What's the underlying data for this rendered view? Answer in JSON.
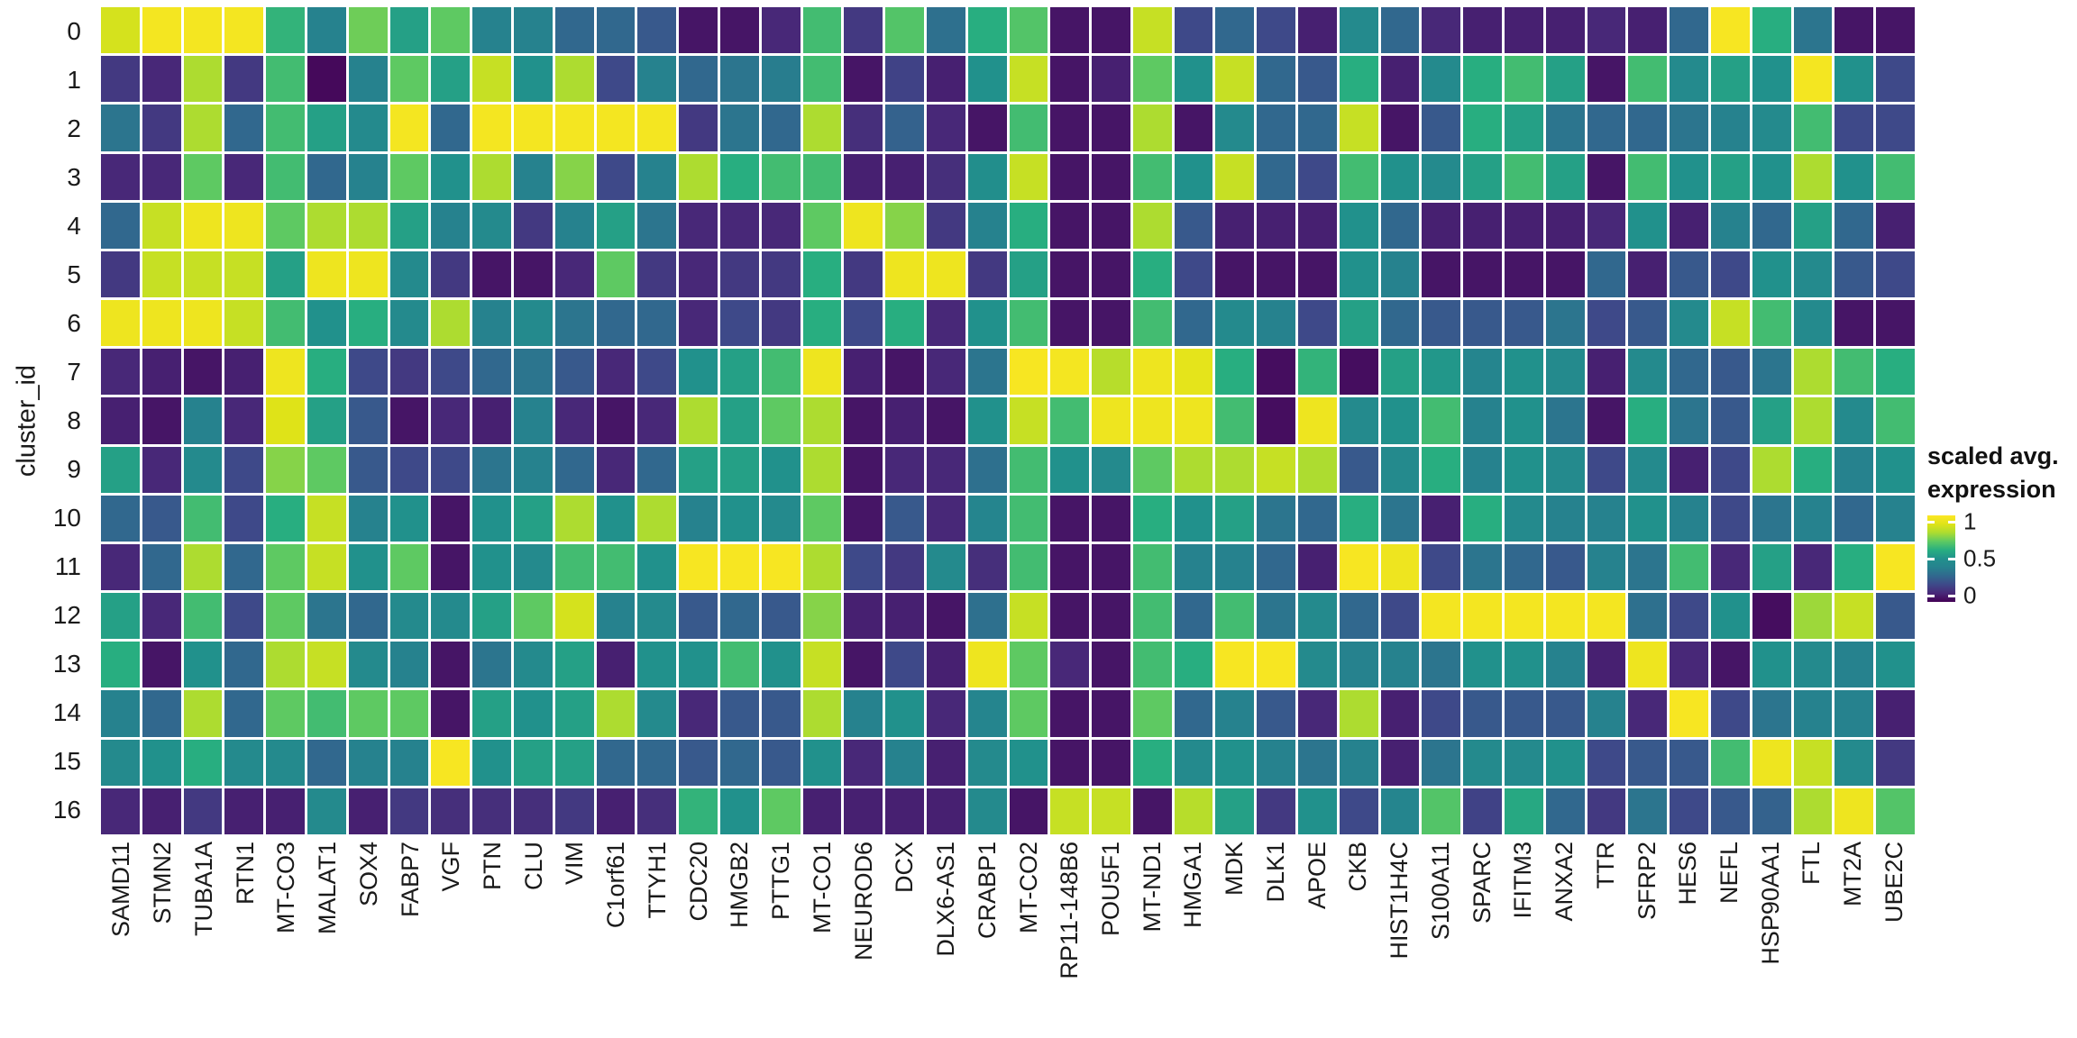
{
  "figure": {
    "y_axis_title": "cluster_id",
    "legend": {
      "title_line1": "scaled avg.",
      "title_line2": "expression",
      "tick_labels": [
        "1",
        "0.5",
        "0"
      ],
      "tick_positions_pct": [
        7,
        50,
        93
      ]
    }
  },
  "chart_data": {
    "type": "heatmap",
    "title": "",
    "xlabel": "",
    "ylabel": "cluster_id",
    "value_name": "scaled avg. expression",
    "value_range": [
      0,
      1
    ],
    "grid": "white gaps between cells",
    "legend_position": "right",
    "colormap": "viridis",
    "colormap_anchors": [
      "#440154",
      "#482878",
      "#3e4989",
      "#31688e",
      "#26828e",
      "#21918c",
      "#28ae80",
      "#5ec962",
      "#addc30",
      "#dfe318",
      "#fde725"
    ],
    "x_categories": [
      "SAMD11",
      "STMN2",
      "TUBA1A",
      "RTN1",
      "MT-CO3",
      "MALAT1",
      "SOX4",
      "FABP7",
      "VGF",
      "PTN",
      "CLU",
      "VIM",
      "C1orf61",
      "TTYH1",
      "CDC20",
      "HMGB2",
      "PTTG1",
      "MT-CO1",
      "NEUROD6",
      "DCX",
      "DLX6-AS1",
      "CRABP1",
      "MT-CO2",
      "RP11-148B6",
      "POU5F1",
      "MT-ND1",
      "HMGA1",
      "MDK",
      "DLK1",
      "APOE",
      "CKB",
      "HIST1H4C",
      "S100A11",
      "SPARC",
      "IFITM3",
      "ANXA2",
      "TTR",
      "SFRP2",
      "HES6",
      "NEFL",
      "HSP90AA1",
      "FTL",
      "MT2A",
      "UBE2C"
    ],
    "y_categories": [
      "0",
      "1",
      "2",
      "3",
      "4",
      "5",
      "6",
      "7",
      "8",
      "9",
      "10",
      "11",
      "12",
      "13",
      "14",
      "15",
      "16"
    ],
    "values": [
      [
        0.88,
        0.97,
        0.97,
        0.97,
        0.62,
        0.4,
        0.72,
        0.55,
        0.7,
        0.4,
        0.4,
        0.3,
        0.3,
        0.25,
        0.05,
        0.05,
        0.1,
        0.65,
        0.15,
        0.68,
        0.33,
        0.6,
        0.68,
        0.05,
        0.05,
        0.85,
        0.2,
        0.3,
        0.2,
        0.08,
        0.45,
        0.3,
        0.1,
        0.08,
        0.08,
        0.08,
        0.1,
        0.08,
        0.3,
        0.98,
        0.6,
        0.35,
        0.05,
        0.05
      ],
      [
        0.15,
        0.1,
        0.8,
        0.15,
        0.65,
        0.02,
        0.4,
        0.7,
        0.55,
        0.85,
        0.5,
        0.8,
        0.2,
        0.4,
        0.3,
        0.35,
        0.38,
        0.65,
        0.05,
        0.18,
        0.08,
        0.5,
        0.85,
        0.05,
        0.08,
        0.7,
        0.5,
        0.85,
        0.3,
        0.25,
        0.6,
        0.08,
        0.45,
        0.6,
        0.65,
        0.55,
        0.05,
        0.65,
        0.45,
        0.55,
        0.5,
        0.97,
        0.5,
        0.2
      ],
      [
        0.35,
        0.15,
        0.8,
        0.3,
        0.65,
        0.55,
        0.45,
        0.97,
        0.3,
        0.97,
        0.97,
        0.97,
        0.97,
        0.97,
        0.15,
        0.35,
        0.3,
        0.8,
        0.12,
        0.28,
        0.1,
        0.05,
        0.65,
        0.05,
        0.05,
        0.8,
        0.05,
        0.45,
        0.3,
        0.3,
        0.85,
        0.05,
        0.25,
        0.6,
        0.55,
        0.35,
        0.3,
        0.3,
        0.35,
        0.4,
        0.45,
        0.65,
        0.2,
        0.2
      ],
      [
        0.1,
        0.1,
        0.7,
        0.1,
        0.65,
        0.3,
        0.4,
        0.7,
        0.5,
        0.8,
        0.4,
        0.75,
        0.2,
        0.4,
        0.8,
        0.6,
        0.65,
        0.65,
        0.08,
        0.08,
        0.12,
        0.48,
        0.85,
        0.05,
        0.05,
        0.65,
        0.5,
        0.85,
        0.3,
        0.2,
        0.65,
        0.5,
        0.45,
        0.55,
        0.65,
        0.55,
        0.05,
        0.65,
        0.5,
        0.55,
        0.5,
        0.8,
        0.5,
        0.65
      ],
      [
        0.3,
        0.85,
        0.95,
        0.95,
        0.7,
        0.8,
        0.8,
        0.55,
        0.4,
        0.45,
        0.15,
        0.4,
        0.55,
        0.35,
        0.1,
        0.1,
        0.1,
        0.7,
        0.95,
        0.75,
        0.15,
        0.4,
        0.6,
        0.05,
        0.05,
        0.8,
        0.25,
        0.08,
        0.08,
        0.08,
        0.5,
        0.3,
        0.08,
        0.08,
        0.08,
        0.08,
        0.1,
        0.5,
        0.08,
        0.4,
        0.3,
        0.55,
        0.3,
        0.08
      ],
      [
        0.15,
        0.85,
        0.85,
        0.85,
        0.55,
        0.95,
        0.95,
        0.45,
        0.15,
        0.05,
        0.05,
        0.1,
        0.7,
        0.15,
        0.1,
        0.15,
        0.15,
        0.6,
        0.15,
        0.95,
        0.95,
        0.15,
        0.55,
        0.05,
        0.05,
        0.6,
        0.2,
        0.05,
        0.05,
        0.05,
        0.5,
        0.4,
        0.05,
        0.05,
        0.05,
        0.05,
        0.3,
        0.08,
        0.25,
        0.2,
        0.5,
        0.45,
        0.25,
        0.2
      ],
      [
        0.95,
        0.95,
        0.95,
        0.85,
        0.65,
        0.5,
        0.6,
        0.45,
        0.8,
        0.4,
        0.45,
        0.35,
        0.3,
        0.3,
        0.1,
        0.2,
        0.15,
        0.6,
        0.2,
        0.6,
        0.1,
        0.5,
        0.65,
        0.05,
        0.05,
        0.65,
        0.3,
        0.45,
        0.4,
        0.2,
        0.55,
        0.3,
        0.25,
        0.25,
        0.25,
        0.35,
        0.2,
        0.25,
        0.45,
        0.85,
        0.65,
        0.45,
        0.05,
        0.05
      ],
      [
        0.1,
        0.08,
        0.05,
        0.08,
        0.95,
        0.6,
        0.2,
        0.15,
        0.2,
        0.3,
        0.35,
        0.25,
        0.1,
        0.2,
        0.5,
        0.55,
        0.65,
        0.95,
        0.08,
        0.05,
        0.1,
        0.35,
        0.98,
        0.97,
        0.82,
        0.95,
        0.92,
        0.6,
        0.03,
        0.62,
        0.03,
        0.55,
        0.52,
        0.42,
        0.5,
        0.45,
        0.08,
        0.45,
        0.3,
        0.25,
        0.35,
        0.8,
        0.65,
        0.6
      ],
      [
        0.08,
        0.05,
        0.4,
        0.1,
        0.9,
        0.55,
        0.25,
        0.05,
        0.1,
        0.08,
        0.4,
        0.1,
        0.05,
        0.1,
        0.8,
        0.55,
        0.7,
        0.8,
        0.05,
        0.08,
        0.05,
        0.5,
        0.85,
        0.65,
        0.95,
        0.95,
        0.95,
        0.65,
        0.03,
        0.95,
        0.45,
        0.5,
        0.65,
        0.4,
        0.5,
        0.35,
        0.05,
        0.6,
        0.35,
        0.25,
        0.55,
        0.8,
        0.45,
        0.65
      ],
      [
        0.55,
        0.1,
        0.45,
        0.2,
        0.75,
        0.7,
        0.25,
        0.2,
        0.2,
        0.35,
        0.4,
        0.3,
        0.1,
        0.3,
        0.55,
        0.55,
        0.5,
        0.8,
        0.05,
        0.1,
        0.1,
        0.33,
        0.65,
        0.5,
        0.45,
        0.7,
        0.8,
        0.8,
        0.85,
        0.8,
        0.25,
        0.45,
        0.6,
        0.4,
        0.5,
        0.45,
        0.2,
        0.45,
        0.08,
        0.2,
        0.8,
        0.6,
        0.4,
        0.5
      ],
      [
        0.3,
        0.25,
        0.65,
        0.2,
        0.6,
        0.85,
        0.4,
        0.5,
        0.05,
        0.5,
        0.55,
        0.8,
        0.5,
        0.8,
        0.4,
        0.5,
        0.45,
        0.7,
        0.05,
        0.25,
        0.1,
        0.42,
        0.65,
        0.05,
        0.05,
        0.6,
        0.5,
        0.55,
        0.35,
        0.3,
        0.6,
        0.35,
        0.08,
        0.6,
        0.45,
        0.4,
        0.4,
        0.5,
        0.4,
        0.2,
        0.35,
        0.4,
        0.3,
        0.4
      ],
      [
        0.1,
        0.3,
        0.8,
        0.3,
        0.7,
        0.85,
        0.5,
        0.7,
        0.05,
        0.5,
        0.45,
        0.65,
        0.65,
        0.5,
        0.98,
        0.98,
        0.98,
        0.8,
        0.2,
        0.15,
        0.45,
        0.12,
        0.65,
        0.05,
        0.05,
        0.65,
        0.4,
        0.4,
        0.3,
        0.08,
        0.98,
        0.95,
        0.2,
        0.35,
        0.3,
        0.25,
        0.4,
        0.35,
        0.65,
        0.1,
        0.55,
        0.1,
        0.6,
        0.98
      ],
      [
        0.55,
        0.1,
        0.65,
        0.2,
        0.7,
        0.35,
        0.3,
        0.45,
        0.45,
        0.55,
        0.7,
        0.88,
        0.4,
        0.45,
        0.25,
        0.3,
        0.25,
        0.75,
        0.08,
        0.08,
        0.05,
        0.33,
        0.85,
        0.05,
        0.05,
        0.65,
        0.3,
        0.65,
        0.35,
        0.45,
        0.3,
        0.2,
        0.97,
        0.97,
        0.97,
        0.97,
        0.97,
        0.33,
        0.2,
        0.5,
        0.03,
        0.78,
        0.85,
        0.25
      ],
      [
        0.6,
        0.05,
        0.5,
        0.3,
        0.8,
        0.85,
        0.45,
        0.4,
        0.05,
        0.35,
        0.45,
        0.55,
        0.08,
        0.5,
        0.5,
        0.65,
        0.5,
        0.85,
        0.05,
        0.2,
        0.08,
        0.95,
        0.7,
        0.1,
        0.05,
        0.65,
        0.6,
        0.98,
        0.98,
        0.45,
        0.4,
        0.4,
        0.35,
        0.5,
        0.5,
        0.4,
        0.08,
        0.95,
        0.1,
        0.05,
        0.5,
        0.45,
        0.4,
        0.5
      ],
      [
        0.4,
        0.3,
        0.8,
        0.3,
        0.7,
        0.65,
        0.7,
        0.7,
        0.05,
        0.55,
        0.5,
        0.55,
        0.8,
        0.45,
        0.1,
        0.25,
        0.25,
        0.8,
        0.4,
        0.5,
        0.1,
        0.42,
        0.7,
        0.05,
        0.05,
        0.7,
        0.3,
        0.4,
        0.25,
        0.1,
        0.8,
        0.08,
        0.2,
        0.25,
        0.25,
        0.25,
        0.4,
        0.1,
        0.98,
        0.2,
        0.35,
        0.4,
        0.4,
        0.08
      ],
      [
        0.45,
        0.5,
        0.6,
        0.45,
        0.45,
        0.3,
        0.4,
        0.4,
        0.98,
        0.5,
        0.55,
        0.55,
        0.3,
        0.3,
        0.25,
        0.3,
        0.25,
        0.5,
        0.1,
        0.4,
        0.08,
        0.45,
        0.5,
        0.05,
        0.05,
        0.6,
        0.45,
        0.5,
        0.4,
        0.35,
        0.4,
        0.08,
        0.35,
        0.45,
        0.45,
        0.5,
        0.2,
        0.25,
        0.25,
        0.65,
        0.95,
        0.85,
        0.45,
        0.15
      ],
      [
        0.1,
        0.08,
        0.15,
        0.08,
        0.08,
        0.45,
        0.08,
        0.15,
        0.12,
        0.12,
        0.12,
        0.15,
        0.08,
        0.12,
        0.62,
        0.5,
        0.7,
        0.08,
        0.08,
        0.08,
        0.08,
        0.45,
        0.05,
        0.85,
        0.85,
        0.05,
        0.82,
        0.55,
        0.15,
        0.5,
        0.2,
        0.42,
        0.68,
        0.18,
        0.58,
        0.3,
        0.15,
        0.35,
        0.2,
        0.25,
        0.28,
        0.8,
        0.95,
        0.68
      ]
    ]
  }
}
